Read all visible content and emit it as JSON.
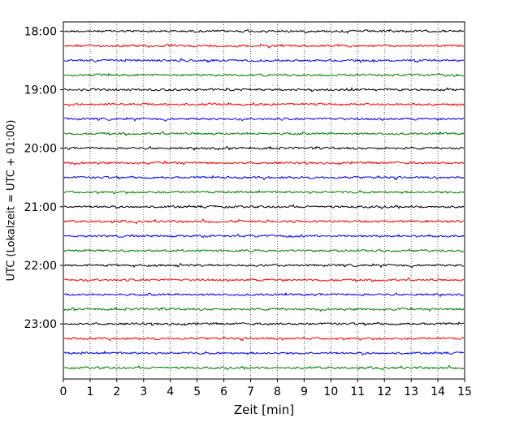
{
  "chart_data": {
    "type": "line",
    "title": "",
    "xlabel": "Zeit  [min]",
    "ylabel": "UTC (Lokalzeit = UTC + 01:00)",
    "xlim": [
      0,
      15
    ],
    "x_ticks": [
      0,
      1,
      2,
      3,
      4,
      5,
      6,
      7,
      8,
      9,
      10,
      11,
      12,
      13,
      14,
      15
    ],
    "y_hour_labels": [
      "18:00",
      "19:00",
      "20:00",
      "21:00",
      "22:00",
      "23:00"
    ],
    "start_time": "18:00",
    "end_time": "24:00",
    "trace_interval_min": 15,
    "trace_count": 24,
    "trace_colors": [
      "#000000",
      "#ff0000",
      "#0000ff",
      "#008000"
    ],
    "vertical_grid": true,
    "grid_style": "dotted"
  }
}
